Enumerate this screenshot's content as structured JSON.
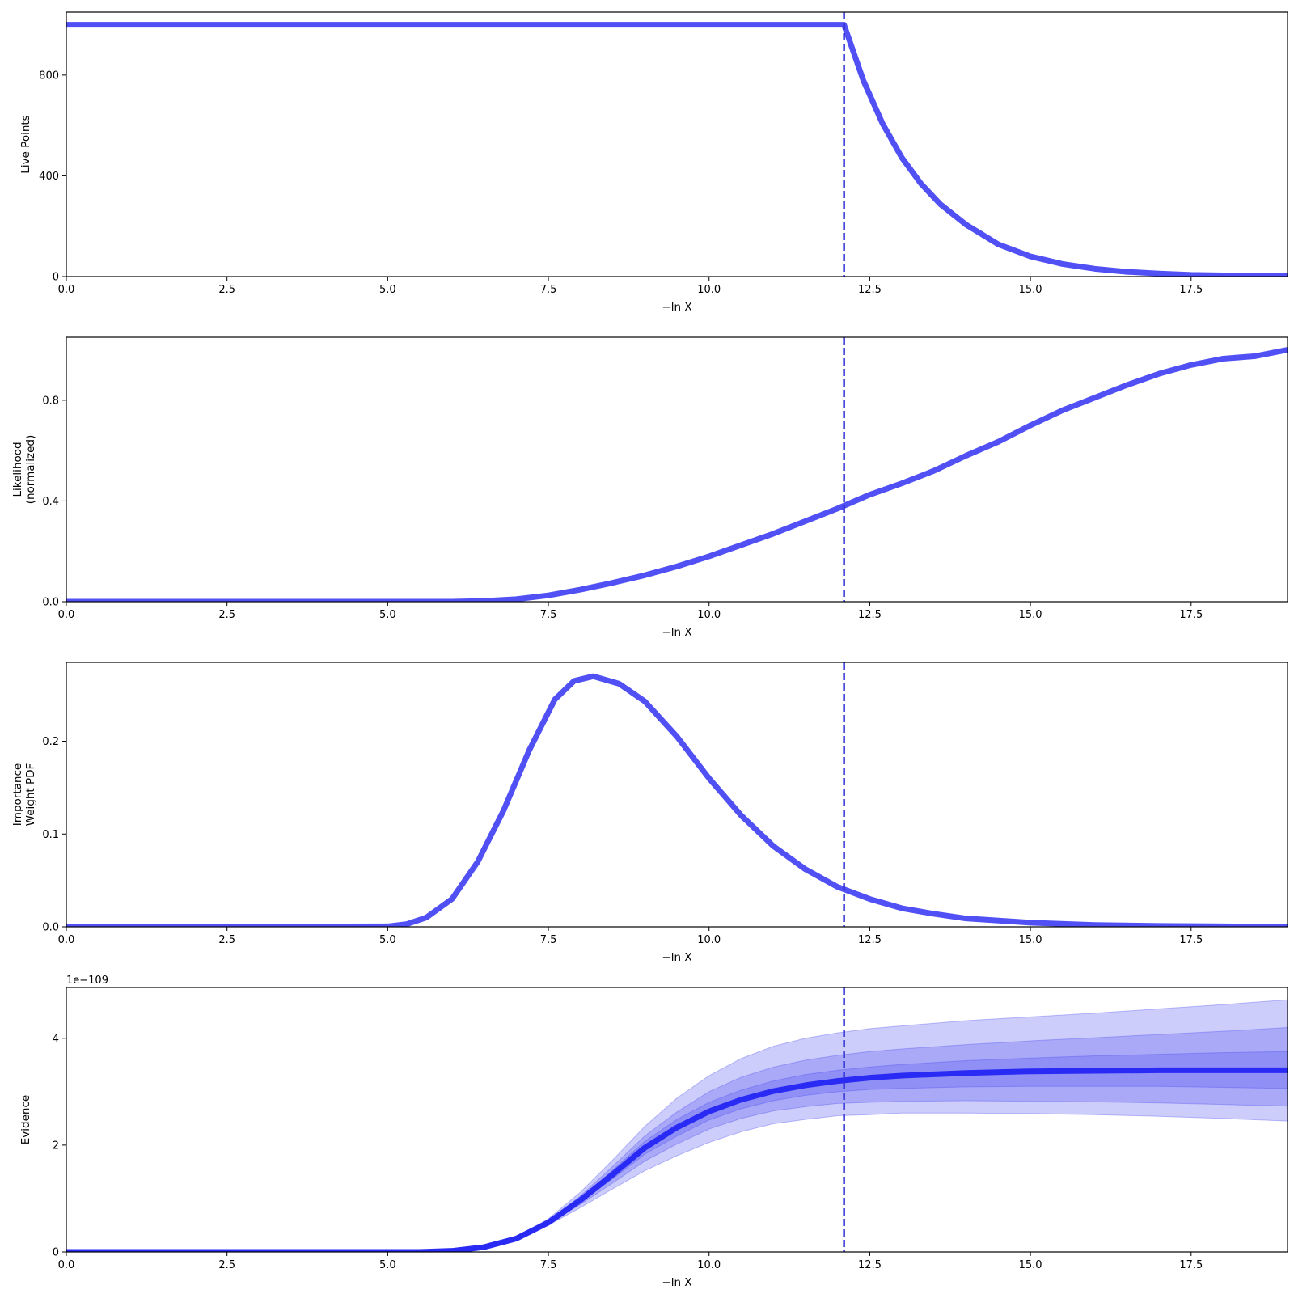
{
  "colors": {
    "line": "#5050f5",
    "vline": "#3535d6",
    "evidence_line": "#2a2af5",
    "band": "#4a4af0"
  },
  "chart_data": [
    {
      "type": "line",
      "id": "live",
      "ylabel": [
        "Live Points"
      ],
      "xlabel": "−ln X",
      "xlim": [
        0,
        19
      ],
      "ylim": [
        0,
        1050
      ],
      "xticks": [
        0,
        2.5,
        5,
        7.5,
        10,
        12.5,
        15,
        17.5
      ],
      "xtick_labels": [
        "0.0",
        "2.5",
        "5.0",
        "7.5",
        "10.0",
        "12.5",
        "15.0",
        "17.5"
      ],
      "yticks": [
        0,
        400,
        800
      ],
      "ytick_labels": [
        "0",
        "400",
        "800"
      ],
      "vline_x": 12.1,
      "series": [
        {
          "x": [
            0,
            12.1,
            12.4,
            12.7,
            13.0,
            13.3,
            13.6,
            14.0,
            14.5,
            15.0,
            15.5,
            16.0,
            16.5,
            17.0,
            17.5,
            18.0,
            19.0
          ],
          "y": [
            1000,
            1000,
            779,
            607,
            472,
            368,
            287,
            206,
            128,
            80,
            50,
            31,
            19,
            12,
            7,
            5,
            2
          ]
        }
      ]
    },
    {
      "type": "line",
      "id": "likelihood",
      "ylabel": [
        "Likelihood",
        "(normalized)"
      ],
      "xlabel": "−ln X",
      "xlim": [
        0,
        19
      ],
      "ylim": [
        0,
        1.05
      ],
      "xticks": [
        0,
        2.5,
        5,
        7.5,
        10,
        12.5,
        15,
        17.5
      ],
      "xtick_labels": [
        "0.0",
        "2.5",
        "5.0",
        "7.5",
        "10.0",
        "12.5",
        "15.0",
        "17.5"
      ],
      "yticks": [
        0,
        0.4,
        0.8
      ],
      "ytick_labels": [
        "0.0",
        "0.4",
        "0.8"
      ],
      "vline_x": 12.1,
      "series": [
        {
          "x": [
            0,
            6.0,
            6.5,
            7.0,
            7.5,
            8.0,
            8.5,
            9.0,
            9.5,
            10.0,
            10.5,
            11.0,
            11.5,
            12.0,
            12.5,
            13.0,
            13.5,
            14.0,
            14.5,
            15.0,
            15.5,
            16.0,
            16.5,
            17.0,
            17.5,
            18.0,
            18.5,
            19.0
          ],
          "y": [
            0,
            0.0,
            0.003,
            0.01,
            0.025,
            0.048,
            0.075,
            0.105,
            0.14,
            0.18,
            0.225,
            0.27,
            0.32,
            0.37,
            0.425,
            0.47,
            0.52,
            0.58,
            0.635,
            0.7,
            0.76,
            0.81,
            0.86,
            0.905,
            0.94,
            0.965,
            0.975,
            1.0
          ]
        }
      ]
    },
    {
      "type": "line",
      "id": "weight",
      "ylabel": [
        "Importance",
        "Weight PDF"
      ],
      "xlabel": "−ln X",
      "xlim": [
        0,
        19
      ],
      "ylim": [
        0,
        0.285
      ],
      "xticks": [
        0,
        2.5,
        5,
        7.5,
        10,
        12.5,
        15,
        17.5
      ],
      "xtick_labels": [
        "0.0",
        "2.5",
        "5.0",
        "7.5",
        "10.0",
        "12.5",
        "15.0",
        "17.5"
      ],
      "yticks": [
        0,
        0.1,
        0.2
      ],
      "ytick_labels": [
        "0.0",
        "0.1",
        "0.2"
      ],
      "vline_x": 12.1,
      "series": [
        {
          "x": [
            0,
            5.0,
            5.3,
            5.6,
            6.0,
            6.4,
            6.8,
            7.2,
            7.6,
            7.9,
            8.2,
            8.6,
            9.0,
            9.5,
            10.0,
            10.5,
            11.0,
            11.5,
            12.0,
            12.5,
            13.0,
            13.5,
            14.0,
            15.0,
            16.0,
            17.0,
            18.0,
            19.0
          ],
          "y": [
            0,
            0.0005,
            0.003,
            0.01,
            0.03,
            0.07,
            0.125,
            0.19,
            0.245,
            0.265,
            0.27,
            0.262,
            0.243,
            0.205,
            0.16,
            0.12,
            0.087,
            0.062,
            0.043,
            0.03,
            0.02,
            0.014,
            0.009,
            0.0045,
            0.002,
            0.001,
            0.0005,
            0.0002
          ]
        }
      ]
    },
    {
      "type": "area",
      "id": "evidence",
      "ylabel": [
        "Evidence"
      ],
      "xlabel": "−ln X",
      "offset_text": "1e−109",
      "xlim": [
        0,
        19
      ],
      "ylim": [
        0,
        4.95
      ],
      "xticks": [
        0,
        2.5,
        5,
        7.5,
        10,
        12.5,
        15,
        17.5
      ],
      "xtick_labels": [
        "0.0",
        "2.5",
        "5.0",
        "7.5",
        "10.0",
        "12.5",
        "15.0",
        "17.5"
      ],
      "yticks": [
        0,
        2,
        4
      ],
      "ytick_labels": [
        "0",
        "2",
        "4"
      ],
      "vline_x": 12.1,
      "x": [
        0,
        5.5,
        6.0,
        6.5,
        7.0,
        7.5,
        8.0,
        8.5,
        9.0,
        9.5,
        10.0,
        10.5,
        11.0,
        11.5,
        12.0,
        12.5,
        13.0,
        14.0,
        15.0,
        16.0,
        17.0,
        18.0,
        19.0
      ],
      "median": [
        0,
        0.0,
        0.02,
        0.09,
        0.25,
        0.55,
        0.97,
        1.45,
        1.95,
        2.33,
        2.63,
        2.85,
        3.01,
        3.12,
        3.2,
        3.26,
        3.3,
        3.35,
        3.38,
        3.39,
        3.4,
        3.4,
        3.4
      ],
      "bands": [
        {
          "lower": [
            0,
            0.0,
            0.02,
            0.09,
            0.24,
            0.5,
            0.83,
            1.18,
            1.52,
            1.8,
            2.05,
            2.25,
            2.4,
            2.48,
            2.55,
            2.57,
            2.6,
            2.6,
            2.59,
            2.57,
            2.54,
            2.5,
            2.45
          ],
          "upper": [
            0,
            0.0,
            0.02,
            0.1,
            0.27,
            0.62,
            1.12,
            1.72,
            2.35,
            2.88,
            3.3,
            3.62,
            3.85,
            4.0,
            4.1,
            4.18,
            4.23,
            4.33,
            4.4,
            4.47,
            4.55,
            4.63,
            4.72
          ]
        },
        {
          "lower": [
            0,
            0.0,
            0.02,
            0.09,
            0.245,
            0.52,
            0.89,
            1.29,
            1.7,
            2.02,
            2.3,
            2.5,
            2.64,
            2.72,
            2.78,
            2.8,
            2.82,
            2.83,
            2.82,
            2.81,
            2.79,
            2.76,
            2.73
          ],
          "upper": [
            0,
            0.0,
            0.02,
            0.095,
            0.26,
            0.59,
            1.05,
            1.6,
            2.17,
            2.62,
            3.0,
            3.27,
            3.46,
            3.59,
            3.68,
            3.75,
            3.8,
            3.88,
            3.95,
            4.01,
            4.07,
            4.13,
            4.2
          ]
        },
        {
          "lower": [
            0,
            0.0,
            0.02,
            0.09,
            0.247,
            0.535,
            0.93,
            1.37,
            1.83,
            2.17,
            2.47,
            2.68,
            2.83,
            2.93,
            3.0,
            3.04,
            3.06,
            3.09,
            3.1,
            3.1,
            3.1,
            3.08,
            3.06
          ],
          "upper": [
            0,
            0.0,
            0.02,
            0.092,
            0.255,
            0.57,
            1.01,
            1.53,
            2.07,
            2.48,
            2.8,
            3.03,
            3.2,
            3.32,
            3.4,
            3.46,
            3.51,
            3.58,
            3.63,
            3.67,
            3.7,
            3.73,
            3.75
          ]
        }
      ]
    }
  ]
}
